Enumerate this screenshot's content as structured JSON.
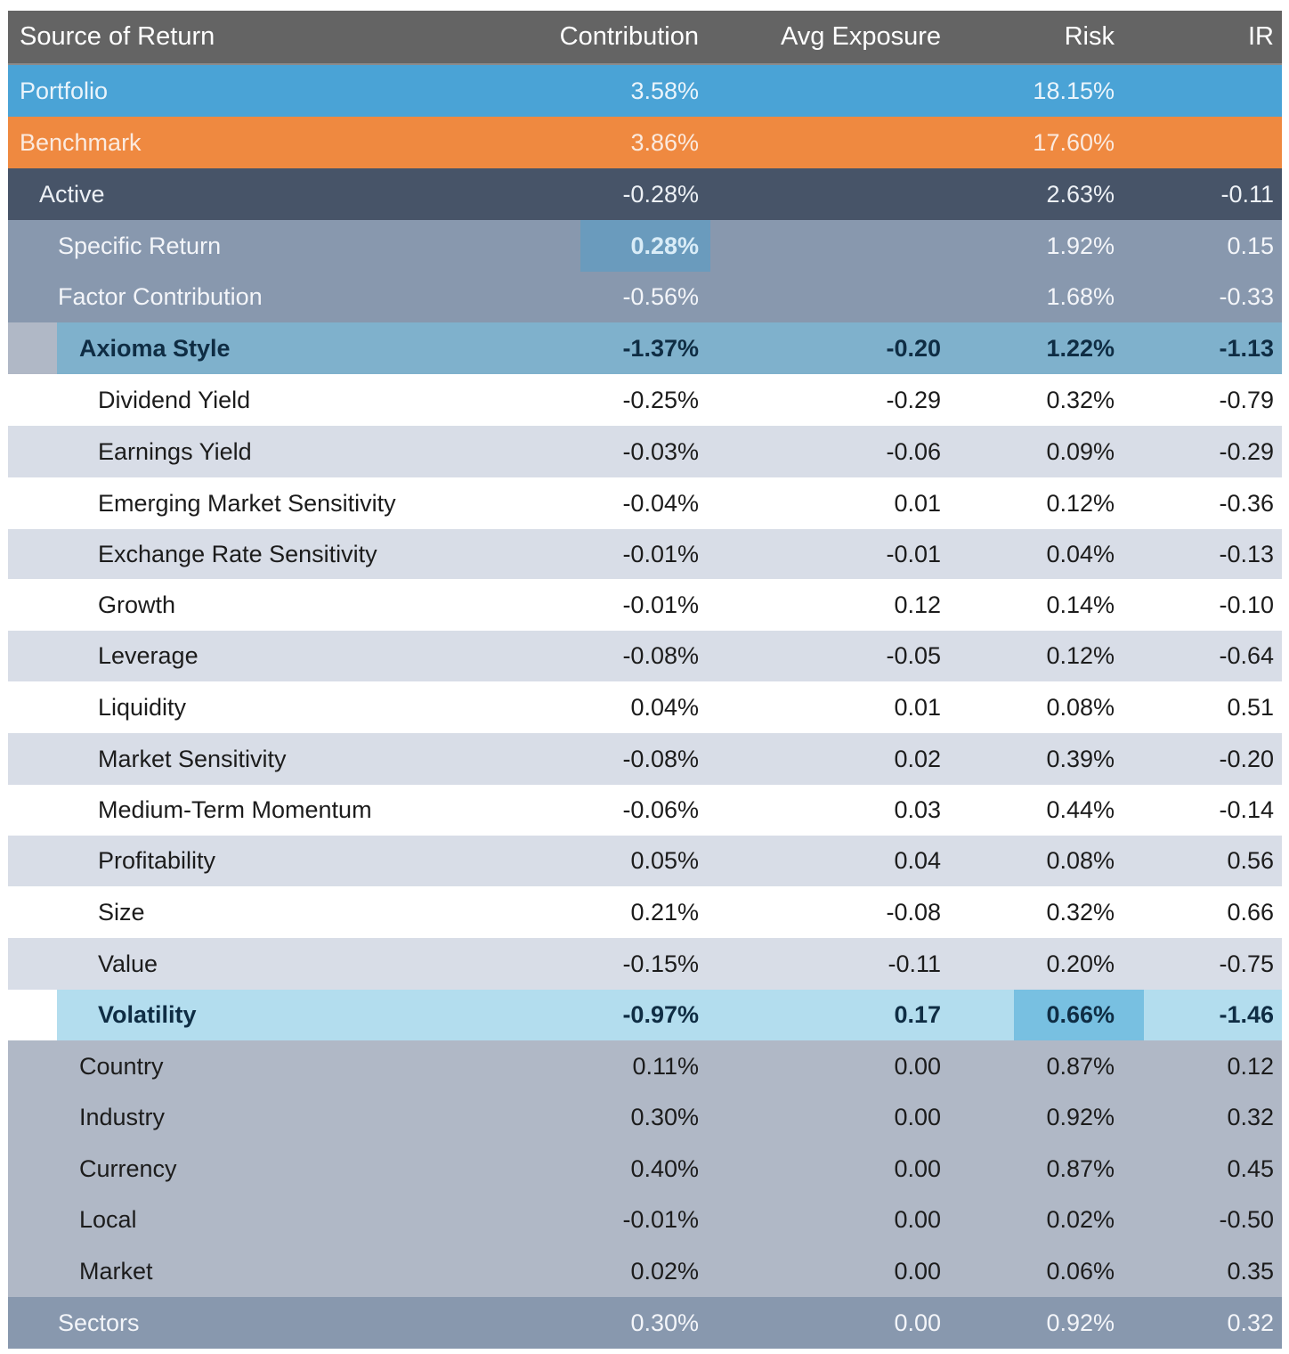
{
  "chart_data": {
    "type": "table",
    "columns": [
      "Source of Return",
      "Contribution",
      "Avg Exposure",
      "Risk",
      "IR"
    ],
    "rows": [
      {
        "label": "Portfolio",
        "contribution": "3.58%",
        "avg_exposure": "",
        "risk": "18.15%",
        "ir": ""
      },
      {
        "label": "Benchmark",
        "contribution": "3.86%",
        "avg_exposure": "",
        "risk": "17.60%",
        "ir": ""
      },
      {
        "label": "Active",
        "contribution": "-0.28%",
        "avg_exposure": "",
        "risk": "2.63%",
        "ir": "-0.11"
      },
      {
        "label": "Specific Return",
        "contribution": "0.28%",
        "avg_exposure": "",
        "risk": "1.92%",
        "ir": "0.15"
      },
      {
        "label": "Factor Contribution",
        "contribution": "-0.56%",
        "avg_exposure": "",
        "risk": "1.68%",
        "ir": "-0.33"
      },
      {
        "label": "Axioma Style",
        "contribution": "-1.37%",
        "avg_exposure": "-0.20",
        "risk": "1.22%",
        "ir": "-1.13"
      },
      {
        "label": "Dividend Yield",
        "contribution": "-0.25%",
        "avg_exposure": "-0.29",
        "risk": "0.32%",
        "ir": "-0.79"
      },
      {
        "label": "Earnings Yield",
        "contribution": "-0.03%",
        "avg_exposure": "-0.06",
        "risk": "0.09%",
        "ir": "-0.29"
      },
      {
        "label": "Emerging Market Sensitivity",
        "contribution": "-0.04%",
        "avg_exposure": "0.01",
        "risk": "0.12%",
        "ir": "-0.36"
      },
      {
        "label": "Exchange Rate Sensitivity",
        "contribution": "-0.01%",
        "avg_exposure": "-0.01",
        "risk": "0.04%",
        "ir": "-0.13"
      },
      {
        "label": "Growth",
        "contribution": "-0.01%",
        "avg_exposure": "0.12",
        "risk": "0.14%",
        "ir": "-0.10"
      },
      {
        "label": "Leverage",
        "contribution": "-0.08%",
        "avg_exposure": "-0.05",
        "risk": "0.12%",
        "ir": "-0.64"
      },
      {
        "label": "Liquidity",
        "contribution": "0.04%",
        "avg_exposure": "0.01",
        "risk": "0.08%",
        "ir": "0.51"
      },
      {
        "label": "Market Sensitivity",
        "contribution": "-0.08%",
        "avg_exposure": "0.02",
        "risk": "0.39%",
        "ir": "-0.20"
      },
      {
        "label": "Medium-Term Momentum",
        "contribution": "-0.06%",
        "avg_exposure": "0.03",
        "risk": "0.44%",
        "ir": "-0.14"
      },
      {
        "label": "Profitability",
        "contribution": "0.05%",
        "avg_exposure": "0.04",
        "risk": "0.08%",
        "ir": "0.56"
      },
      {
        "label": "Size",
        "contribution": "0.21%",
        "avg_exposure": "-0.08",
        "risk": "0.32%",
        "ir": "0.66"
      },
      {
        "label": "Value",
        "contribution": "-0.15%",
        "avg_exposure": "-0.11",
        "risk": "0.20%",
        "ir": "-0.75"
      },
      {
        "label": "Volatility",
        "contribution": "-0.97%",
        "avg_exposure": "0.17",
        "risk": "0.66%",
        "ir": "-1.46"
      },
      {
        "label": "Country",
        "contribution": "0.11%",
        "avg_exposure": "0.00",
        "risk": "0.87%",
        "ir": "0.12"
      },
      {
        "label": "Industry",
        "contribution": "0.30%",
        "avg_exposure": "0.00",
        "risk": "0.92%",
        "ir": "0.32"
      },
      {
        "label": "Currency",
        "contribution": "0.40%",
        "avg_exposure": "0.00",
        "risk": "0.87%",
        "ir": "0.45"
      },
      {
        "label": "Local",
        "contribution": "-0.01%",
        "avg_exposure": "0.00",
        "risk": "0.02%",
        "ir": "-0.50"
      },
      {
        "label": "Market",
        "contribution": "0.02%",
        "avg_exposure": "0.00",
        "risk": "0.06%",
        "ir": "0.35"
      },
      {
        "label": "Sectors",
        "contribution": "0.30%",
        "avg_exposure": "0.00",
        "risk": "0.92%",
        "ir": "0.32"
      }
    ]
  },
  "colors": {
    "header": "#646464",
    "portfolio": "#4aa3d6",
    "benchmark": "#ef8940",
    "active": "#475468",
    "factor": "#8898ae",
    "axioma_style": "#7fb1cc",
    "row_grey": "#d8dde7",
    "row_white": "#ffffff",
    "volatility": "#b3ddee",
    "group": "#b0b8c6",
    "highlight_contrib": "#6a9bbd",
    "highlight_risk": "#78c0e1"
  }
}
